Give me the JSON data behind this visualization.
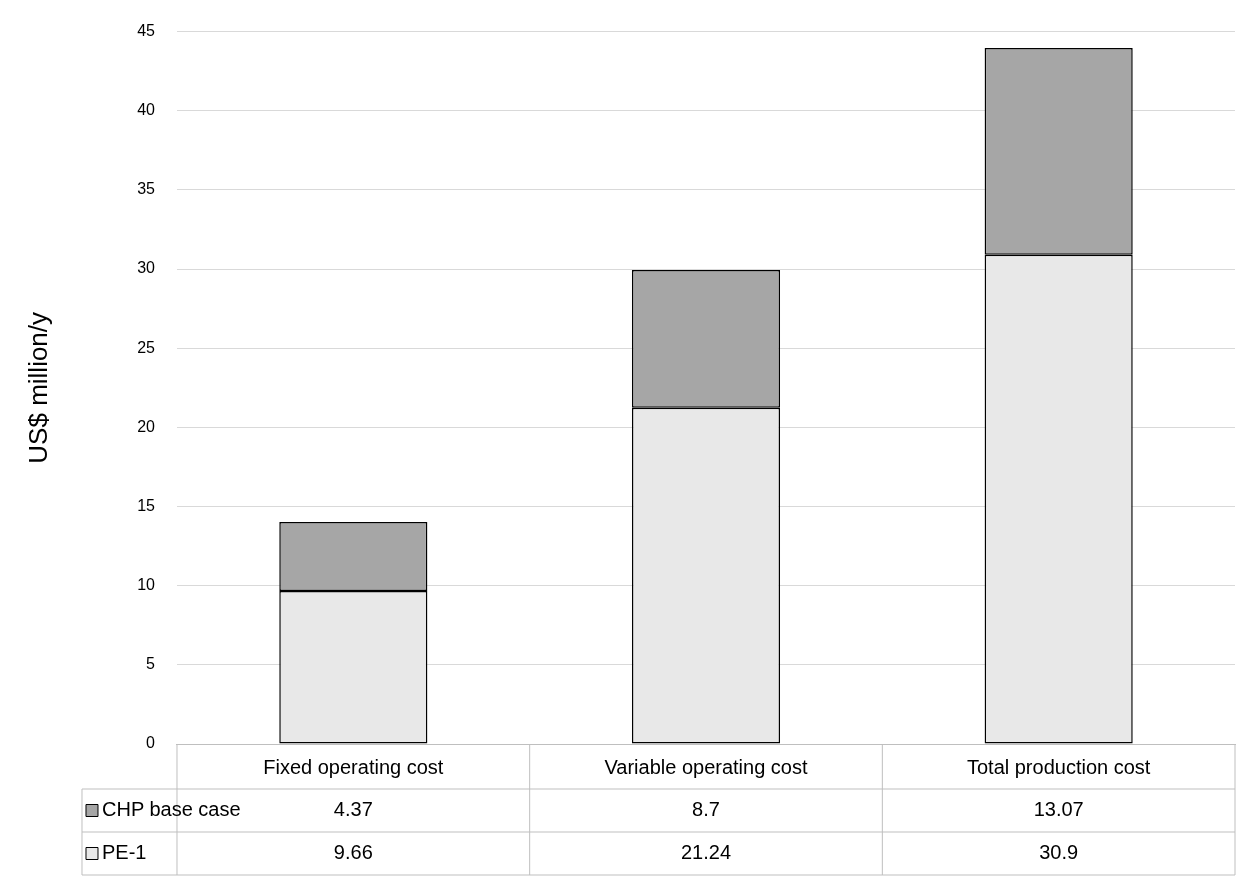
{
  "chart_data": {
    "type": "bar",
    "ylabel": "US$ million/y",
    "categories": [
      "Fixed operating cost",
      "Variable operating cost",
      "Total production cost"
    ],
    "series": [
      {
        "name": "PE-1",
        "color": "#e8e8e8",
        "values": [
          9.66,
          21.24,
          30.9
        ]
      },
      {
        "name": "CHP base case",
        "color": "#a6a6a6",
        "values": [
          4.37,
          8.7,
          13.07
        ]
      }
    ],
    "stacked": true,
    "ylim": [
      0,
      45
    ],
    "yticks": [
      0,
      5,
      10,
      15,
      20,
      25,
      30,
      35,
      40,
      45
    ],
    "grid": "y",
    "legend": "bottom left",
    "data_labels": true
  }
}
